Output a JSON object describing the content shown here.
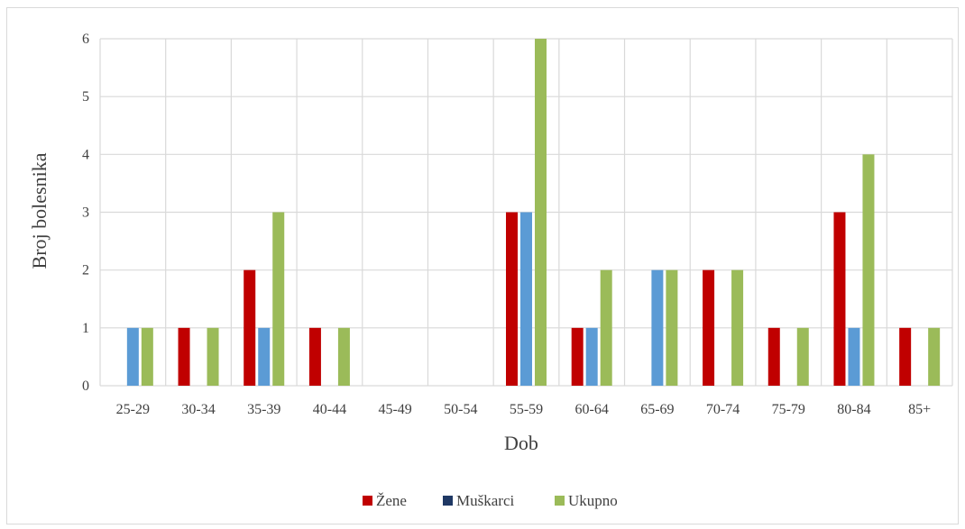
{
  "chart_data": {
    "type": "bar",
    "title": "",
    "xlabel": "Dob",
    "ylabel": "Broj bolesnika",
    "ylim": [
      0,
      6
    ],
    "yticks": [
      "0",
      "1",
      "2",
      "3",
      "4",
      "5",
      "6"
    ],
    "grid": true,
    "legend_position": "bottom",
    "categories": [
      "25-29",
      "30-34",
      "35-39",
      "40-44",
      "45-49",
      "50-54",
      "55-59",
      "60-64",
      "65-69",
      "70-74",
      "75-79",
      "80-84",
      "85+"
    ],
    "series": [
      {
        "name": "Žene",
        "values": [
          0,
          1,
          2,
          1,
          0,
          0,
          3,
          1,
          0,
          2,
          1,
          3,
          1
        ]
      },
      {
        "name": "Muškarci",
        "values": [
          1,
          0,
          1,
          0,
          0,
          0,
          3,
          1,
          2,
          0,
          0,
          1,
          0
        ]
      },
      {
        "name": "Ukupno",
        "values": [
          1,
          1,
          3,
          1,
          0,
          0,
          6,
          2,
          2,
          2,
          1,
          4,
          1
        ]
      }
    ],
    "colors": {
      "series_fill": [
        "#c00000",
        "#5b9bd5",
        "#9bbb59"
      ],
      "legend_swatch": [
        "#c00000",
        "#1f3864",
        "#9bbb59"
      ],
      "grid": "#d9d9d9",
      "text": "#404040"
    }
  }
}
